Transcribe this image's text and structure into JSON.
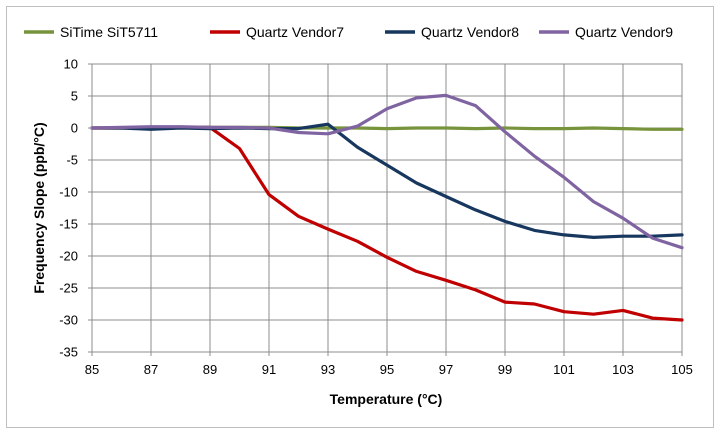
{
  "chart_data": {
    "type": "line",
    "title": "",
    "xlabel": "Temperature (°C)",
    "ylabel": "Frequency Slope (ppb/°C)",
    "xlim": [
      85,
      105
    ],
    "ylim": [
      -35,
      10
    ],
    "xticks": [
      85,
      87,
      89,
      91,
      93,
      95,
      97,
      99,
      101,
      103,
      105
    ],
    "yticks": [
      10,
      5,
      0,
      -5,
      -10,
      -15,
      -20,
      -25,
      -30,
      -35
    ],
    "grid": true,
    "legend_position": "top",
    "x": [
      85,
      86,
      87,
      88,
      89,
      90,
      91,
      92,
      93,
      94,
      95,
      96,
      97,
      98,
      99,
      100,
      101,
      102,
      103,
      104,
      105
    ],
    "series": [
      {
        "name": "SiTime SiT5711",
        "color": "#77933c",
        "values": [
          0,
          0,
          0,
          0.1,
          0.1,
          0.1,
          0.1,
          0,
          0,
          0,
          -0.1,
          0,
          0,
          -0.1,
          0,
          -0.1,
          -0.1,
          0,
          -0.1,
          -0.2,
          -0.2
        ]
      },
      {
        "name": "Quartz Vendor7",
        "color": "#c00000",
        "values": [
          0,
          0,
          0.1,
          0.1,
          0.1,
          -3.2,
          -10.4,
          -13.8,
          -15.8,
          -17.7,
          -20.2,
          -22.4,
          -23.8,
          -25.3,
          -27.2,
          -27.5,
          -28.7,
          -29.1,
          -28.5,
          -29.7,
          -30.0
        ]
      },
      {
        "name": "Quartz Vendor8",
        "color": "#17375e",
        "values": [
          0,
          0,
          -0.2,
          0,
          -0.1,
          0,
          -0.1,
          -0.1,
          0.6,
          -3.0,
          -5.8,
          -8.6,
          -10.7,
          -12.8,
          -14.6,
          -16.0,
          -16.7,
          -17.1,
          -16.9,
          -16.9,
          -16.7
        ]
      },
      {
        "name": "Quartz Vendor9",
        "color": "#8064a2",
        "values": [
          0,
          0.1,
          0.2,
          0.2,
          0.1,
          0.1,
          0,
          -0.7,
          -0.9,
          0.3,
          3.0,
          4.7,
          5.1,
          3.5,
          -0.6,
          -4.4,
          -7.7,
          -11.5,
          -14.1,
          -17.2,
          -18.7
        ]
      }
    ]
  }
}
